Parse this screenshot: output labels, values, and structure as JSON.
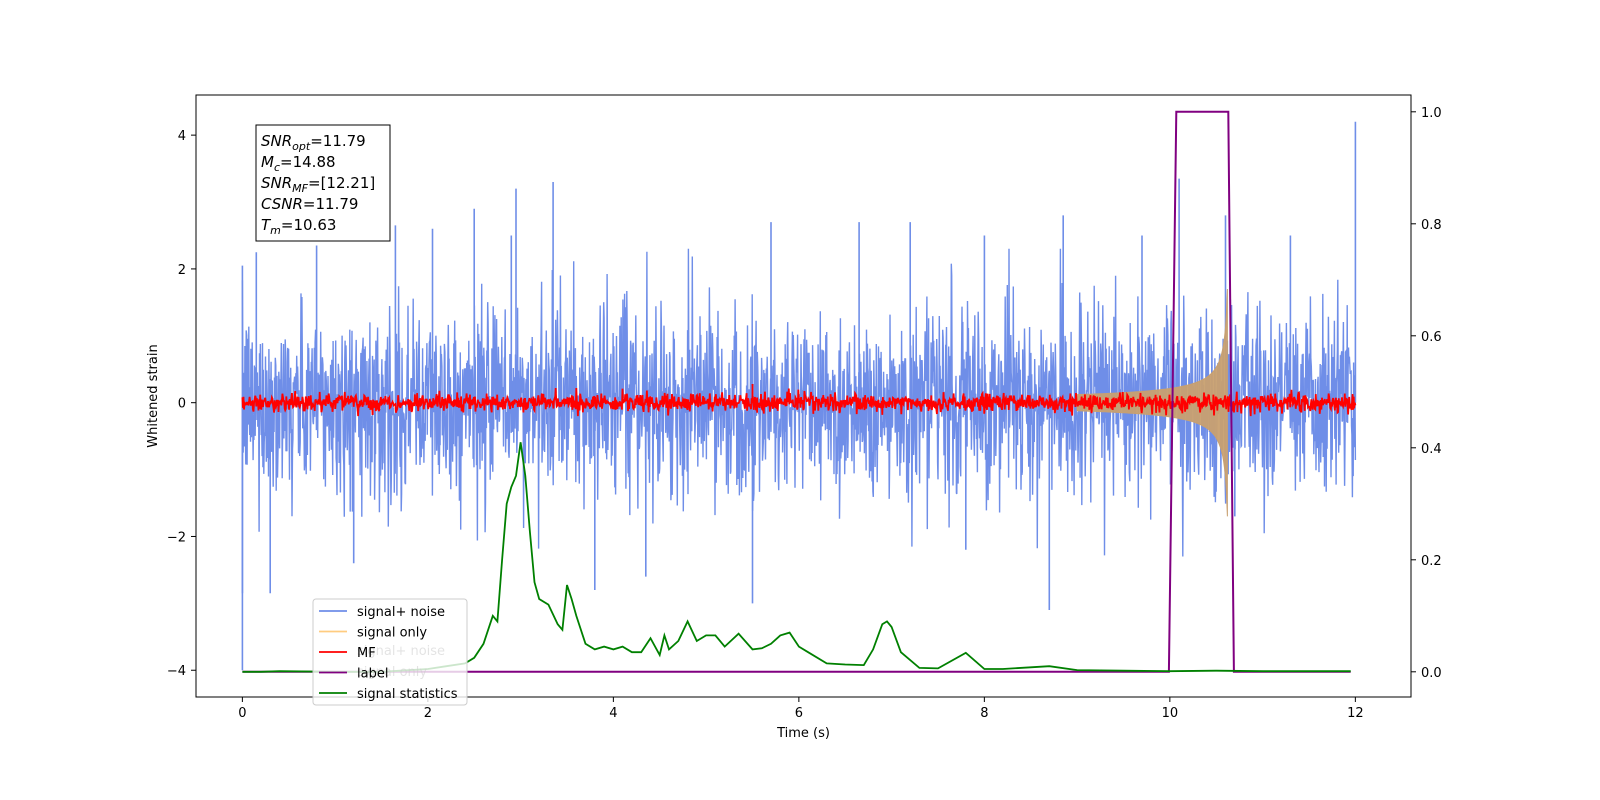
{
  "chart_data": {
    "type": "line",
    "xlabel": "Time (s)",
    "ylabel": "Whitened strain",
    "xlim": [
      -0.5,
      12.6
    ],
    "ylim": [
      -4.4,
      4.6
    ],
    "y2lim": [
      -0.045,
      1.03
    ],
    "xticks": [
      0,
      2,
      4,
      6,
      8,
      10,
      12
    ],
    "xtick_labels": [
      "0",
      "2",
      "4",
      "6",
      "8",
      "10",
      "12"
    ],
    "yticks": [
      -4,
      -2,
      0,
      2,
      4
    ],
    "ytick_labels": [
      "−4",
      "−2",
      "0",
      "2",
      "4"
    ],
    "y2ticks": [
      0.0,
      0.2,
      0.4,
      0.6,
      0.8,
      1.0
    ],
    "y2tick_labels": [
      "0.0",
      "0.2",
      "0.4",
      "0.6",
      "0.8",
      "1.0"
    ],
    "legend_position": "lower-left",
    "legend": [
      "signal+ noise",
      "signal only",
      "MF",
      "label",
      "signal statistics"
    ],
    "ghost_legend": [
      "signal+ noise",
      "signal only"
    ],
    "colors": {
      "signal_noise": "#6f8ee8",
      "signal_only": "#c8a070",
      "mf": "#ff0000",
      "label": "#800080",
      "signal_statistics": "#008000"
    },
    "info_box": [
      {
        "main": "SNR",
        "sub": "opt",
        "value": "=11.79"
      },
      {
        "main": "M",
        "sub": "c",
        "value": "=14.88"
      },
      {
        "main": "SNR",
        "sub": "MF",
        "value": "=[12.21]"
      },
      {
        "main": "CSNR",
        "sub": "",
        "value": "=11.79"
      },
      {
        "main": "T",
        "sub": "m",
        "value": "=10.63"
      }
    ],
    "series": [
      {
        "name": "signal+ noise",
        "axis": "left",
        "t_range": [
          0,
          12
        ],
        "envelope_typical": 1.1,
        "spikes": [
          [
            0.0,
            2.05
          ],
          [
            0.0,
            -2.85
          ],
          [
            0.0,
            -4.0
          ],
          [
            0.15,
            2.25
          ],
          [
            0.3,
            -2.85
          ],
          [
            0.8,
            2.35
          ],
          [
            1.2,
            -2.4
          ],
          [
            1.65,
            2.65
          ],
          [
            2.05,
            2.6
          ],
          [
            2.5,
            2.9
          ],
          [
            2.9,
            2.5
          ],
          [
            2.95,
            3.2
          ],
          [
            3.35,
            3.3
          ],
          [
            3.8,
            -2.8
          ],
          [
            4.35,
            -2.6
          ],
          [
            5.5,
            -3.0
          ],
          [
            5.7,
            2.7
          ],
          [
            6.65,
            2.7
          ],
          [
            7.2,
            2.7
          ],
          [
            7.8,
            -2.2
          ],
          [
            8.0,
            2.5
          ],
          [
            8.7,
            -3.1
          ],
          [
            8.85,
            2.8
          ],
          [
            9.7,
            2.5
          ],
          [
            10.1,
            3.35
          ],
          [
            10.6,
            2.8
          ],
          [
            10.7,
            -1.7
          ],
          [
            11.3,
            2.5
          ],
          [
            12.0,
            4.2
          ]
        ]
      },
      {
        "name": "signal only",
        "axis": "left",
        "chirp": {
          "t_start": 9.0,
          "t_merger": 10.62,
          "peak_amplitude": 1.7
        }
      },
      {
        "name": "MF",
        "axis": "left",
        "t_range": [
          0,
          12
        ],
        "typical_amplitude": 0.15,
        "spikes": [
          [
            5.5,
            0.28
          ],
          [
            5.55,
            -0.15
          ]
        ]
      },
      {
        "name": "label",
        "axis": "right",
        "x": [
          0.0,
          9.99,
          10.07,
          10.63,
          10.69,
          11.95
        ],
        "y": [
          0.0,
          0.0,
          1.0,
          1.0,
          0.0,
          0.0
        ]
      },
      {
        "name": "signal statistics",
        "axis": "right",
        "x": [
          0.0,
          0.2,
          0.4,
          1.0,
          1.5,
          2.0,
          2.2,
          2.4,
          2.5,
          2.6,
          2.7,
          2.75,
          2.8,
          2.85,
          2.9,
          2.95,
          3.0,
          3.05,
          3.1,
          3.15,
          3.2,
          3.3,
          3.4,
          3.45,
          3.5,
          3.55,
          3.6,
          3.7,
          3.8,
          3.9,
          4.0,
          4.1,
          4.2,
          4.3,
          4.4,
          4.5,
          4.55,
          4.6,
          4.7,
          4.8,
          4.9,
          5.0,
          5.1,
          5.2,
          5.35,
          5.5,
          5.6,
          5.7,
          5.8,
          5.9,
          6.0,
          6.1,
          6.3,
          6.5,
          6.7,
          6.8,
          6.9,
          6.95,
          7.0,
          7.1,
          7.3,
          7.5,
          7.8,
          8.0,
          8.2,
          8.5,
          8.7,
          9.0,
          9.5,
          10.0,
          10.5,
          11.0,
          11.95
        ],
        "y": [
          0.0,
          0.0,
          0.001,
          0.0,
          0.0,
          0.005,
          0.01,
          0.015,
          0.025,
          0.05,
          0.1,
          0.09,
          0.2,
          0.3,
          0.33,
          0.35,
          0.41,
          0.35,
          0.25,
          0.16,
          0.13,
          0.12,
          0.085,
          0.075,
          0.155,
          0.13,
          0.1,
          0.05,
          0.04,
          0.045,
          0.04,
          0.045,
          0.035,
          0.035,
          0.06,
          0.03,
          0.065,
          0.04,
          0.055,
          0.09,
          0.055,
          0.065,
          0.065,
          0.045,
          0.068,
          0.04,
          0.042,
          0.05,
          0.065,
          0.07,
          0.045,
          0.035,
          0.015,
          0.013,
          0.012,
          0.04,
          0.085,
          0.09,
          0.08,
          0.035,
          0.007,
          0.006,
          0.034,
          0.005,
          0.005,
          0.008,
          0.01,
          0.003,
          0.002,
          0.001,
          0.002,
          0.001,
          0.001
        ]
      }
    ]
  }
}
